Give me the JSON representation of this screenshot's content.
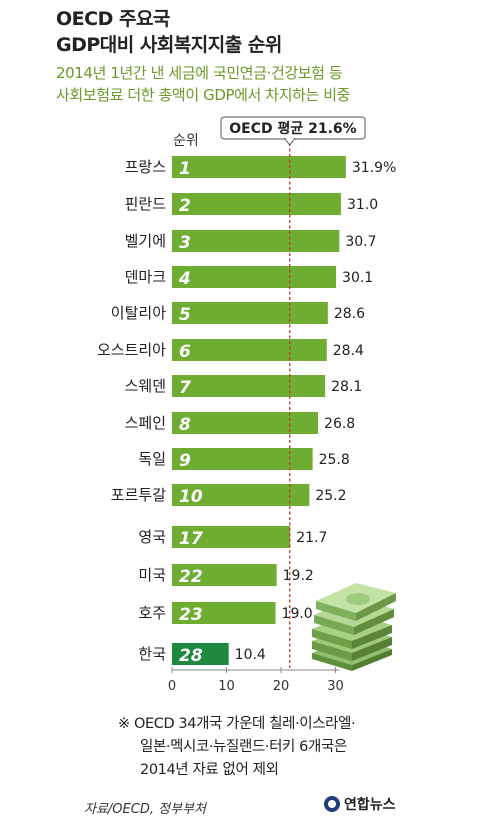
{
  "header": {
    "title_line1": "OECD 주요국",
    "title_line2": "GDP대비 사회복지지출 순위",
    "subtitle_line1": "2014년 1년간 낸 세금에 국민연금·건강보험 등",
    "subtitle_line2": "사회보험료 더한 총액이 GDP에서 차지하는 비중"
  },
  "rank_header": "순위",
  "chart_data": {
    "type": "bar",
    "orientation": "horizontal",
    "categories": [
      "프랑스",
      "핀란드",
      "벨기에",
      "덴마크",
      "이탈리아",
      "오스트리아",
      "스웨덴",
      "스페인",
      "독일",
      "포르투갈",
      "영국",
      "미국",
      "호주",
      "한국"
    ],
    "ranks": [
      "1",
      "2",
      "3",
      "4",
      "5",
      "6",
      "7",
      "8",
      "9",
      "10",
      "17",
      "22",
      "23",
      "28"
    ],
    "values": [
      31.9,
      31.0,
      30.7,
      30.1,
      28.6,
      28.4,
      28.1,
      26.8,
      25.8,
      25.2,
      21.7,
      19.2,
      19.0,
      10.4
    ],
    "value_labels": [
      "31.9%",
      "31.0",
      "30.7",
      "30.1",
      "28.6",
      "28.4",
      "28.1",
      "26.8",
      "25.8",
      "25.2",
      "21.7",
      "19.2",
      "19.0",
      "10.4"
    ],
    "xlim": [
      0,
      30
    ],
    "xticks": [
      "0",
      "10",
      "20",
      "30"
    ],
    "average": {
      "label": "OECD 평균 21.6%",
      "value": 21.6
    },
    "highlight_category": "한국",
    "colors": {
      "bar": "#6fad32",
      "highlight": "#1e8a3e",
      "average_line": "#c0392b",
      "rank_text": "#ffffff"
    },
    "grid": false
  },
  "note": {
    "line1": "※ OECD 34개국 가운데 칠레·이스라엘·",
    "line2": "일본·멕시코·뉴질랜드·터키 6개국은",
    "line3": "2014년 자료 없어 제외"
  },
  "footer": {
    "source": "자료/OECD, 정부부처",
    "logo": "연합뉴스",
    "logo_icon": "yonhap-logo-icon"
  }
}
